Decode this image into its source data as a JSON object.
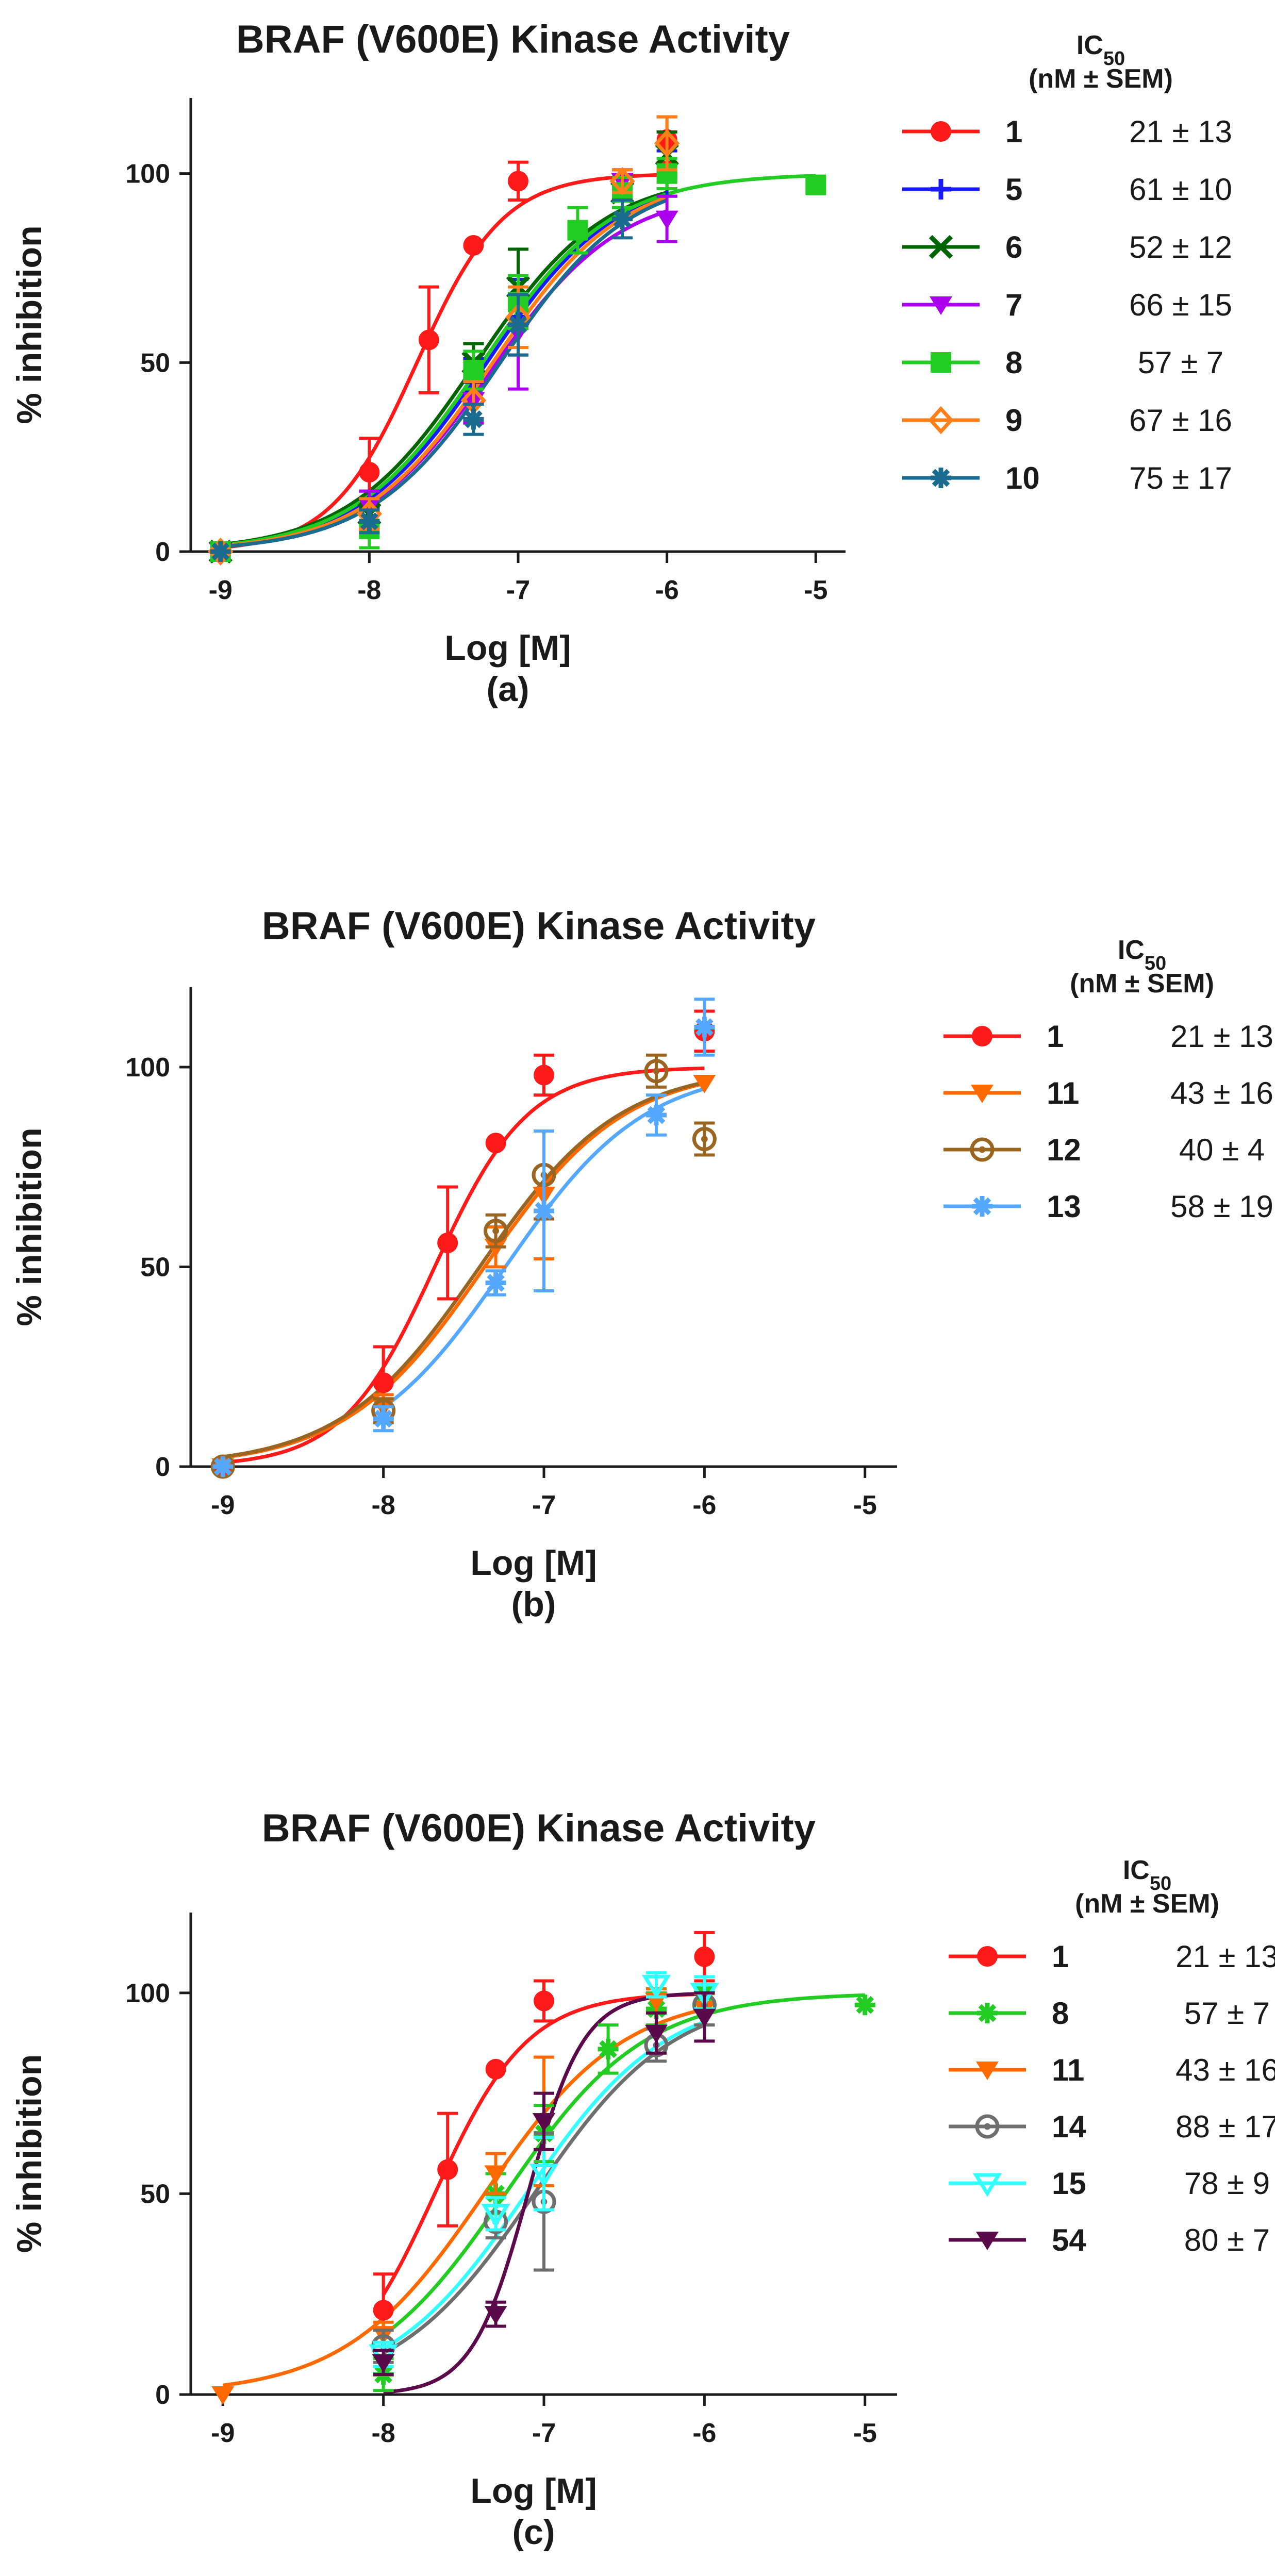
{
  "chart_data": [
    {
      "type": "scatter",
      "title": "BRAF (V600E) Kinase Activity",
      "xlabel": "Log [M]",
      "ylabel": "% inhibition",
      "panel_label": "(a)",
      "xlim": [
        -9.2,
        -4.8
      ],
      "ylim": [
        0,
        120
      ],
      "xticks": [
        -9,
        -8,
        -7,
        -6,
        -5
      ],
      "yticks": [
        0,
        50,
        100
      ],
      "legend_header": [
        "IC50",
        "(nM ± SEM)"
      ],
      "series": [
        {
          "name": "1",
          "ic50": "21 ± 13",
          "color": "#ff1a1a",
          "marker": "circle",
          "x": [
            -9,
            -8,
            -7.6,
            -7.3,
            -7,
            -6
          ],
          "y": [
            0,
            21,
            56,
            81,
            98,
            109
          ],
          "err": [
            0,
            9,
            14,
            0,
            5,
            6
          ],
          "fit": {
            "logec50": -7.68,
            "hill": 1.5,
            "top": 100,
            "xmin": -9,
            "xmax": -6
          }
        },
        {
          "name": "5",
          "ic50": "61 ± 10",
          "color": "#1a1aff",
          "marker": "plus",
          "x": [
            -9,
            -8,
            -7.3,
            -7,
            -6.3,
            -6
          ],
          "y": [
            0,
            12,
            45,
            62,
            97,
            100
          ],
          "err": [
            0,
            4,
            6,
            10,
            4,
            6
          ],
          "fit": {
            "logec50": -7.21,
            "hill": 1.0,
            "top": 100,
            "xmin": -9,
            "xmax": -6
          }
        },
        {
          "name": "6",
          "ic50": "52 ± 12",
          "color": "#006400",
          "marker": "cross",
          "x": [
            -9,
            -8,
            -7.3,
            -7,
            -6.3,
            -6
          ],
          "y": [
            0,
            10,
            50,
            70,
            95,
            105
          ],
          "err": [
            0,
            4,
            5,
            10,
            4,
            6
          ],
          "fit": {
            "logec50": -7.28,
            "hill": 1.0,
            "top": 100,
            "xmin": -9,
            "xmax": -6
          }
        },
        {
          "name": "7",
          "ic50": "66 ± 15",
          "color": "#aa00ee",
          "marker": "triangle-down",
          "x": [
            -9,
            -8,
            -7.3,
            -7,
            -6.3,
            -6
          ],
          "y": [
            0,
            12,
            40,
            58,
            98,
            88
          ],
          "err": [
            0,
            4,
            6,
            15,
            3,
            6
          ],
          "fit": {
            "logec50": -7.18,
            "hill": 1.0,
            "top": 96,
            "xmin": -9,
            "xmax": -6
          }
        },
        {
          "name": "8",
          "ic50": "57 ± 7",
          "color": "#22cc22",
          "marker": "square",
          "x": [
            -9,
            -8,
            -7.3,
            -7,
            -6.6,
            -6.3,
            -6,
            -5
          ],
          "y": [
            0,
            6,
            48,
            66,
            85,
            95,
            100,
            97
          ],
          "err": [
            0,
            5,
            5,
            7,
            6,
            4,
            4,
            0
          ],
          "fit": {
            "logec50": -7.24,
            "hill": 1.0,
            "top": 100,
            "xmin": -9,
            "xmax": -5
          }
        },
        {
          "name": "9",
          "ic50": "67 ± 16",
          "color": "#ff7f1a",
          "marker": "diamond",
          "x": [
            -9,
            -8,
            -7.3,
            -7,
            -6.3,
            -6
          ],
          "y": [
            0,
            10,
            40,
            62,
            98,
            108
          ],
          "err": [
            0,
            4,
            5,
            8,
            3,
            7
          ],
          "fit": {
            "logec50": -7.17,
            "hill": 1.0,
            "top": 100,
            "xmin": -9,
            "xmax": -6
          }
        },
        {
          "name": "10",
          "ic50": "75 ± 17",
          "color": "#1a6b8f",
          "marker": "star",
          "x": [
            -9,
            -8,
            -7.3,
            -7,
            -6.3
          ],
          "y": [
            0,
            8,
            35,
            60,
            88
          ],
          "err": [
            0,
            3,
            4,
            8,
            5
          ],
          "fit": {
            "logec50": -7.12,
            "hill": 1.0,
            "top": 100,
            "xmin": -9,
            "xmax": -6
          }
        }
      ]
    },
    {
      "type": "scatter",
      "title": "BRAF (V600E) Kinase Activity",
      "xlabel": "Log [M]",
      "ylabel": "% inhibition",
      "panel_label": "(b)",
      "xlim": [
        -9.2,
        -4.8
      ],
      "ylim": [
        0,
        120
      ],
      "xticks": [
        -9,
        -8,
        -7,
        -6,
        -5
      ],
      "yticks": [
        0,
        50,
        100
      ],
      "legend_header": [
        "IC50",
        "(nM ± SEM)"
      ],
      "series": [
        {
          "name": "1",
          "ic50": "21 ± 13",
          "color": "#ff1a1a",
          "marker": "circle",
          "x": [
            -9,
            -8,
            -7.6,
            -7.3,
            -7,
            -6
          ],
          "y": [
            0,
            21,
            56,
            81,
            98,
            109
          ],
          "err": [
            0,
            9,
            14,
            0,
            5,
            5
          ],
          "fit": {
            "logec50": -7.68,
            "hill": 1.5,
            "top": 100,
            "xmin": -9,
            "xmax": -6
          }
        },
        {
          "name": "11",
          "ic50": "43 ± 16",
          "color": "#ff6a00",
          "marker": "triangle-down",
          "x": [
            -9,
            -8,
            -7.3,
            -7,
            -6
          ],
          "y": [
            0,
            15,
            55,
            68,
            96
          ],
          "err": [
            0,
            3,
            5,
            16,
            0
          ],
          "fit": {
            "logec50": -7.37,
            "hill": 1.0,
            "top": 100,
            "xmin": -9,
            "xmax": -6
          }
        },
        {
          "name": "12",
          "ic50": "40 ± 4",
          "color": "#9a6520",
          "marker": "circle-dot",
          "x": [
            -9,
            -8,
            -7.3,
            -7,
            -6.3,
            -6
          ],
          "y": [
            0,
            14,
            59,
            73,
            99,
            82
          ],
          "err": [
            0,
            3,
            4,
            11,
            4,
            4
          ],
          "fit": {
            "logec50": -7.4,
            "hill": 1.0,
            "top": 100,
            "xmin": -9,
            "xmax": -6
          }
        },
        {
          "name": "13",
          "ic50": "58 ± 19",
          "color": "#55a8ff",
          "marker": "star",
          "x": [
            -9,
            -8,
            -7.3,
            -7,
            -6.3,
            -6
          ],
          "y": [
            0,
            12,
            46,
            64,
            88,
            110
          ],
          "err": [
            0,
            3,
            3,
            20,
            5,
            7
          ],
          "fit": {
            "logec50": -7.24,
            "hill": 1.0,
            "top": 100,
            "xmin": -8,
            "xmax": -6
          }
        }
      ]
    },
    {
      "type": "scatter",
      "title": "BRAF (V600E) Kinase Activity",
      "xlabel": "Log [M]",
      "ylabel": "% inhibition",
      "panel_label": "(c)",
      "xlim": [
        -9.2,
        -4.8
      ],
      "ylim": [
        0,
        120
      ],
      "xticks": [
        -9,
        -8,
        -7,
        -6,
        -5
      ],
      "yticks": [
        0,
        50,
        100
      ],
      "legend_header": [
        "IC50",
        "(nM ± SEM)"
      ],
      "series": [
        {
          "name": "1",
          "ic50": "21 ± 13",
          "color": "#ff1a1a",
          "marker": "circle",
          "x": [
            -8,
            -7.6,
            -7.3,
            -7,
            -6
          ],
          "y": [
            21,
            56,
            81,
            98,
            109
          ],
          "err": [
            9,
            14,
            0,
            5,
            6
          ],
          "fit": {
            "logec50": -7.68,
            "hill": 1.5,
            "top": 100,
            "xmin": -8,
            "xmax": -6
          }
        },
        {
          "name": "8",
          "ic50": "57 ± 7",
          "color": "#22cc22",
          "marker": "star",
          "x": [
            -8,
            -7.3,
            -7,
            -6.6,
            -6.3,
            -6,
            -5
          ],
          "y": [
            5,
            50,
            65,
            86,
            96,
            100,
            97
          ],
          "err": [
            4,
            5,
            7,
            6,
            4,
            4,
            0
          ],
          "fit": {
            "logec50": -7.24,
            "hill": 1.0,
            "top": 100,
            "xmin": -8,
            "xmax": -5
          }
        },
        {
          "name": "11",
          "ic50": "43 ± 16",
          "color": "#ff6a00",
          "marker": "triangle-down",
          "x": [
            -9,
            -8,
            -7.3,
            -7,
            -6.3,
            -6
          ],
          "y": [
            0,
            15,
            55,
            68,
            98,
            96
          ],
          "err": [
            0,
            3,
            5,
            16,
            3,
            4
          ],
          "fit": {
            "logec50": -7.37,
            "hill": 1.0,
            "top": 100,
            "xmin": -9,
            "xmax": -6
          }
        },
        {
          "name": "14",
          "ic50": "88 ± 17",
          "color": "#6e6e6e",
          "marker": "circle-dot",
          "x": [
            -8,
            -7.3,
            -7,
            -6.3,
            -6
          ],
          "y": [
            12,
            43,
            48,
            87,
            97
          ],
          "err": [
            4,
            4,
            17,
            4,
            5
          ],
          "fit": {
            "logec50": -7.06,
            "hill": 1.0,
            "top": 100,
            "xmin": -8,
            "xmax": -6
          }
        },
        {
          "name": "15",
          "ic50": "78 ± 9",
          "color": "#33ffff",
          "marker": "triangle-down-open",
          "x": [
            -8,
            -7.3,
            -7,
            -6.3,
            -6
          ],
          "y": [
            10,
            45,
            55,
            102,
            100
          ],
          "err": [
            3,
            4,
            9,
            3,
            4
          ],
          "fit": {
            "logec50": -7.11,
            "hill": 1.0,
            "top": 100,
            "xmin": -8,
            "xmax": -6
          }
        },
        {
          "name": "54",
          "ic50": "80 ± 7",
          "color": "#5a0a4a",
          "marker": "triangle-down",
          "x": [
            -8,
            -7.3,
            -7,
            -6.3,
            -6
          ],
          "y": [
            8,
            20,
            68,
            90,
            94
          ],
          "err": [
            3,
            3,
            7,
            5,
            6
          ],
          "fit": {
            "logec50": -7.1,
            "hill": 2.5,
            "top": 100,
            "xmin": -8,
            "xmax": -6
          }
        }
      ]
    }
  ]
}
